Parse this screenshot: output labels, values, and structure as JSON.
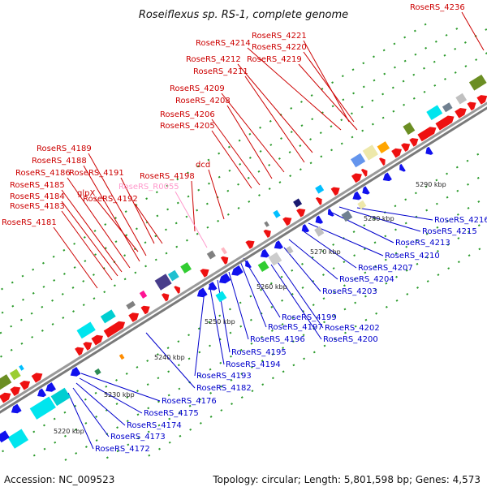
{
  "title": "Roseiflexus sp. RS-1, complete genome",
  "accession": "Accession: NC_009523",
  "topology": "Topology: circular; Length: 5,801,598 bp; Genes: 4,573",
  "colors": {
    "top_label": "#cc0000",
    "bottom_label": "#0000cc",
    "rna_label": "#ff99cc",
    "forward_gene": "#ee1111",
    "reverse_gene": "#1111ee",
    "backbone": "#999999"
  },
  "scale_ticks": [
    "5220 kbp",
    "5230 kbp",
    "5240 kbp",
    "5250 kbp",
    "5260 kbp",
    "5270 kbp",
    "5280 kbp",
    "5290 kbp"
  ],
  "top_labels": [
    "RoseRS_4236",
    "RoseRS_4221",
    "RoseRS_4214",
    "RoseRS_4220",
    "RoseRS_4212",
    "RoseRS_4219",
    "RoseRS_4211",
    "RoseRS_4209",
    "RoseRS_4208",
    "RoseRS_4206",
    "RoseRS_4205",
    "RoseRS_4189",
    "RoseRS_4188",
    "RoseRS_4186",
    "RoseRS_4191",
    "dcd",
    "RoseRS_4198",
    "RoseRS_4185",
    "glpX",
    "RoseRS_R0055",
    "RoseRS_4184",
    "RoseRS_4192",
    "RoseRS_4183",
    "RoseRS_4181"
  ],
  "bottom_labels": [
    "RoseRS_4216",
    "RoseRS_4215",
    "RoseRS_4213",
    "RoseRS_4210",
    "RoseRS_4207",
    "RoseRS_4204",
    "RoseRS_4203",
    "RoseRS_4199",
    "RoseRS_4202",
    "RoseRS_4197",
    "RoseRS_4200",
    "RoseRS_4196",
    "RoseRS_4195",
    "RoseRS_4194",
    "RoseRS_4193",
    "RoseRS_4182",
    "RoseRS_4176",
    "RoseRS_4175",
    "RoseRS_4174",
    "RoseRS_4173",
    "RoseRS_4172"
  ]
}
